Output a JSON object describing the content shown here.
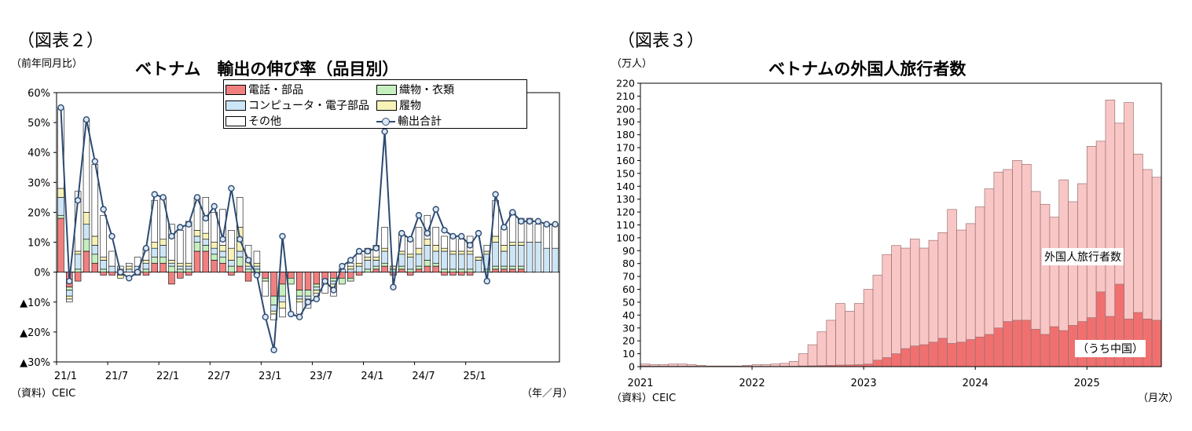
{
  "left": {
    "fig_label": "（図表２）",
    "unit": "（前年同月比）",
    "source": "（資料）CEIC",
    "xunit": "（年／月）",
    "colors": {
      "phone": "#f08080",
      "textile": "#c6efc0",
      "computer": "#cde6f7",
      "shoes": "#f7f2b8",
      "other": "#ffffff",
      "line": "#2c4a72",
      "marker": "#dbe7f4"
    },
    "chart_data": {
      "type": "bar",
      "title": "ベトナム　輸出の伸び率（品目別）",
      "ylim": [
        -30,
        60
      ],
      "yticks": [
        60,
        50,
        40,
        30,
        20,
        10,
        0,
        -10,
        -20,
        -30
      ],
      "ytick_labels": [
        "60%",
        "50%",
        "40%",
        "30%",
        "20%",
        "10%",
        "0%",
        "▲10%",
        "▲20%",
        "▲30%"
      ],
      "xtick_labels": [
        "21/1",
        "21/7",
        "22/1",
        "22/7",
        "23/1",
        "23/7",
        "24/1",
        "24/7",
        "25/1"
      ],
      "xtick_index": [
        0,
        6,
        12,
        18,
        24,
        30,
        36,
        42,
        48
      ],
      "series": [
        {
          "name": "電話・部品",
          "key": "phone",
          "values": [
            18,
            -5,
            -3,
            7,
            3,
            -1,
            -1,
            -1,
            0,
            -1,
            -1,
            3,
            3,
            -4,
            -2,
            -1,
            7,
            7,
            4,
            3,
            -1,
            2,
            -3,
            -1,
            -2,
            -8,
            -4,
            -2,
            -6,
            -6,
            -4,
            -3,
            -2,
            -2,
            -2,
            -1,
            0,
            1,
            2,
            -1,
            1,
            -1,
            1,
            2,
            2,
            -1,
            -1,
            -1,
            -1,
            0,
            0,
            1,
            1,
            1,
            1,
            0,
            0,
            0,
            0
          ]
        },
        {
          "name": "織物・衣類",
          "key": "textile",
          "values": [
            1,
            -1,
            1,
            4,
            3,
            1,
            0,
            0,
            0,
            0,
            1,
            2,
            2,
            2,
            1,
            1,
            3,
            2,
            2,
            2,
            2,
            3,
            1,
            1,
            -1,
            -3,
            -4,
            -2,
            -2,
            -2,
            -1,
            -1,
            -1,
            -2,
            -1,
            0,
            1,
            1,
            1,
            1,
            1,
            1,
            1,
            2,
            1,
            1,
            1,
            1,
            1,
            0,
            1,
            1,
            1,
            1,
            1,
            0,
            0,
            0,
            0
          ]
        },
        {
          "name": "コンピュータ・電子部品",
          "key": "computer",
          "values": [
            6,
            -2,
            5,
            5,
            3,
            3,
            2,
            1,
            1,
            2,
            2,
            3,
            4,
            1,
            1,
            1,
            2,
            2,
            2,
            2,
            2,
            2,
            1,
            1,
            0,
            -2,
            -2,
            0,
            -1,
            -1,
            -1,
            0,
            -1,
            1,
            1,
            2,
            3,
            2,
            4,
            0,
            4,
            4,
            4,
            5,
            4,
            6,
            5,
            5,
            5,
            4,
            5,
            8,
            5,
            7,
            7,
            10,
            10,
            8,
            8
          ]
        },
        {
          "name": "履物",
          "key": "shoes",
          "values": [
            3,
            -1,
            1,
            4,
            3,
            1,
            0,
            -1,
            1,
            0,
            1,
            2,
            2,
            1,
            1,
            1,
            2,
            2,
            2,
            2,
            4,
            8,
            2,
            1,
            0,
            -1,
            -2,
            0,
            -1,
            -1,
            -1,
            0,
            -1,
            0,
            1,
            1,
            1,
            1,
            1,
            1,
            1,
            1,
            2,
            2,
            2,
            1,
            1,
            1,
            1,
            1,
            1,
            2,
            2,
            1,
            1,
            0,
            0,
            0,
            0
          ]
        },
        {
          "name": "その他",
          "key": "other",
          "values": [
            27,
            -1,
            20,
            31,
            24,
            14,
            5,
            1,
            1,
            3,
            4,
            14,
            14,
            12,
            11,
            14,
            11,
            12,
            10,
            12,
            6,
            10,
            5,
            4,
            -5,
            -2,
            -3,
            0,
            -4,
            -2,
            -1,
            -3,
            -3,
            0,
            1,
            3,
            3,
            4,
            7,
            0,
            6,
            5,
            7,
            8,
            6,
            4,
            5,
            4,
            5,
            0,
            2,
            12,
            6,
            10,
            8,
            8,
            6,
            8,
            8
          ]
        },
        {
          "name": "輸出合計",
          "key": "total",
          "values": [
            55,
            -3,
            24,
            51,
            37,
            21,
            12,
            0,
            -2,
            0,
            8,
            26,
            25,
            12,
            15,
            16,
            25,
            18,
            22,
            11,
            28,
            11,
            4,
            -1,
            -15,
            -26,
            12,
            -14,
            -15,
            -10,
            -9,
            -3,
            -6,
            2,
            4,
            7,
            7,
            8,
            47,
            -5,
            13,
            11,
            19,
            13,
            21,
            14,
            12,
            12,
            9,
            13,
            -3,
            26,
            15,
            20,
            17,
            17,
            17,
            16,
            16
          ]
        }
      ]
    },
    "legend": [
      {
        "label": "電話・部品",
        "key": "phone"
      },
      {
        "label": "織物・衣類",
        "key": "textile"
      },
      {
        "label": "コンピュータ・電子部品",
        "key": "computer"
      },
      {
        "label": "履物",
        "key": "shoes"
      },
      {
        "label": "その他",
        "key": "other"
      },
      {
        "label": "輸出合計",
        "key": "total"
      }
    ]
  },
  "right": {
    "fig_label": "（図表３）",
    "unit": "（万人）",
    "source": "（資料）CEIC",
    "xunit": "（月次）",
    "annot_total": "外国人旅行者数",
    "annot_china": "（うち中国）",
    "colors": {
      "total": "#f9c6c6",
      "china": "#f07070",
      "edge": "#9a7070"
    },
    "chart_data": {
      "type": "bar",
      "title": "ベトナムの外国人旅行者数",
      "ylim": [
        0,
        220
      ],
      "yticks": [
        0,
        10,
        20,
        30,
        40,
        50,
        60,
        70,
        80,
        90,
        100,
        110,
        120,
        130,
        140,
        150,
        160,
        170,
        180,
        190,
        200,
        210,
        220
      ],
      "xtick_labels": [
        "2021",
        "2022",
        "2023",
        "2024",
        "2025"
      ],
      "xtick_index": [
        0,
        12,
        24,
        36,
        48
      ],
      "series": [
        {
          "name": "外国人旅行者数",
          "values": [
            2,
            1.5,
            1.5,
            2,
            2,
            1.5,
            1,
            0.5,
            0.5,
            0.5,
            0.5,
            1,
            1.5,
            1.5,
            2,
            2.5,
            4,
            10,
            17,
            27,
            36,
            49,
            43,
            49,
            60,
            71,
            87,
            94,
            92,
            99,
            92,
            98,
            104,
            122,
            106,
            111,
            124,
            138,
            151,
            153,
            160,
            157,
            136,
            126,
            116,
            145,
            128,
            142,
            171,
            175,
            207,
            189,
            205,
            165,
            153,
            147
          ]
        },
        {
          "name": "（うち中国）",
          "values": [
            0.5,
            0.3,
            0.3,
            0.3,
            0.3,
            0.3,
            0.2,
            0.1,
            0.1,
            0.1,
            0.1,
            0.2,
            0.2,
            0.2,
            0.2,
            0.3,
            0.3,
            0.5,
            0.6,
            0.8,
            1,
            1.2,
            1.3,
            1.5,
            2,
            5,
            7,
            10,
            14,
            16,
            17,
            19,
            22,
            18,
            19,
            21,
            23,
            25,
            30,
            35,
            36,
            36,
            29,
            25,
            31,
            28,
            32,
            35,
            38,
            58,
            39,
            64,
            37,
            42,
            37,
            36
          ]
        }
      ]
    }
  }
}
